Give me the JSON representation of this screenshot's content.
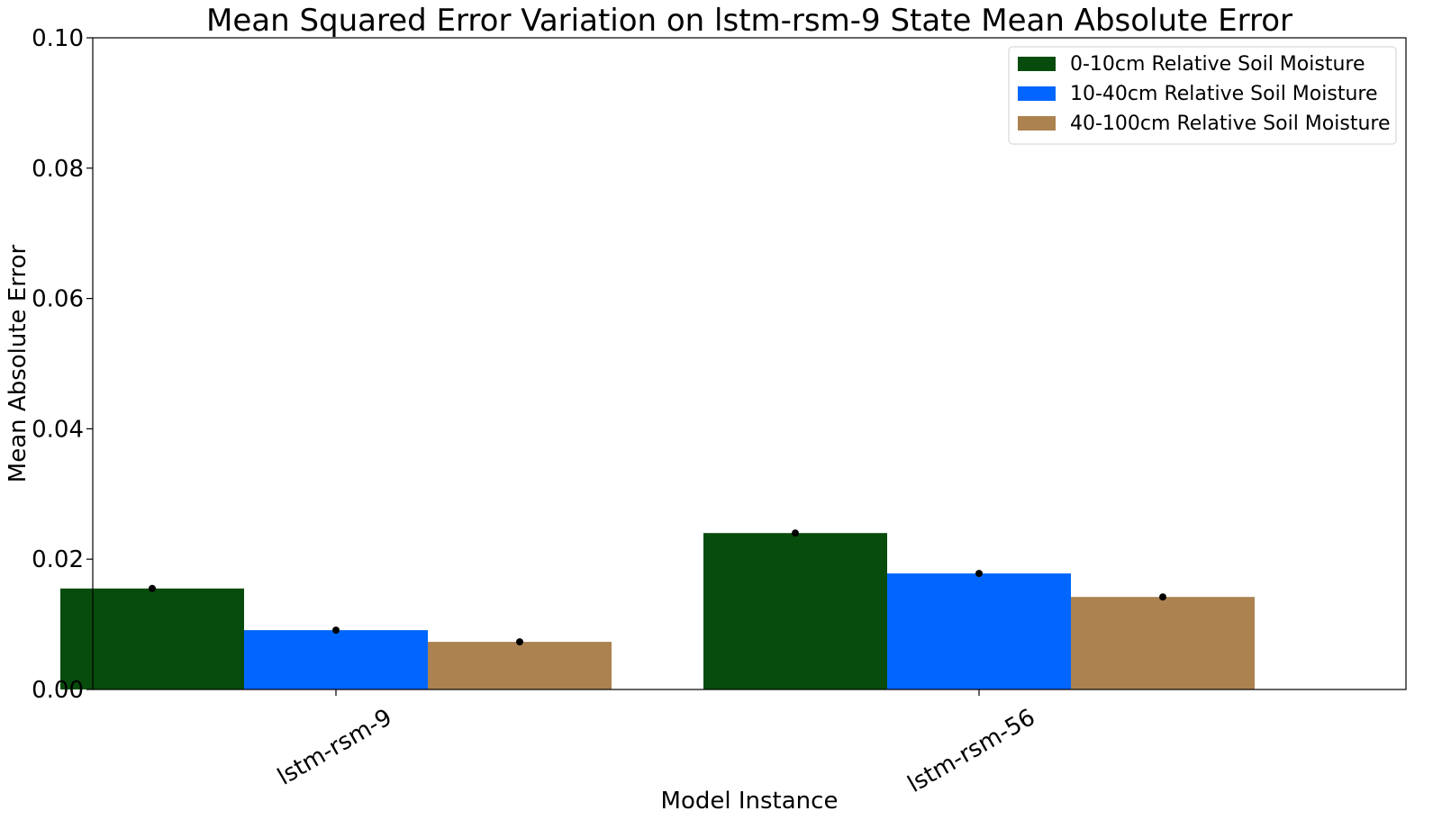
{
  "chart_data": {
    "type": "bar",
    "title": "Mean Squared Error Variation on lstm-rsm-9 State Mean Absolute Error",
    "xlabel": "Model Instance",
    "ylabel": "Mean Absolute Error",
    "ylim": [
      0,
      0.1
    ],
    "yticks": [
      "0.00",
      "0.02",
      "0.04",
      "0.06",
      "0.08",
      "0.10"
    ],
    "categories": [
      "lstm-rsm-9",
      "lstm-rsm-56"
    ],
    "series": [
      {
        "name": "0-10cm Relative Soil Moisture",
        "color": "#084c0d",
        "values": [
          0.0155,
          0.024
        ]
      },
      {
        "name": "10-40cm Relative Soil Moisture",
        "color": "#0066ff",
        "values": [
          0.0091,
          0.0178
        ]
      },
      {
        "name": "40-100cm Relative Soil Moisture",
        "color": "#ab8250",
        "values": [
          0.0073,
          0.0142
        ]
      }
    ],
    "error_markers": [
      [
        0.0155,
        0.024
      ],
      [
        0.0091,
        0.0178
      ],
      [
        0.0073,
        0.0142
      ]
    ],
    "grid": false,
    "legend_position": "top-right"
  }
}
